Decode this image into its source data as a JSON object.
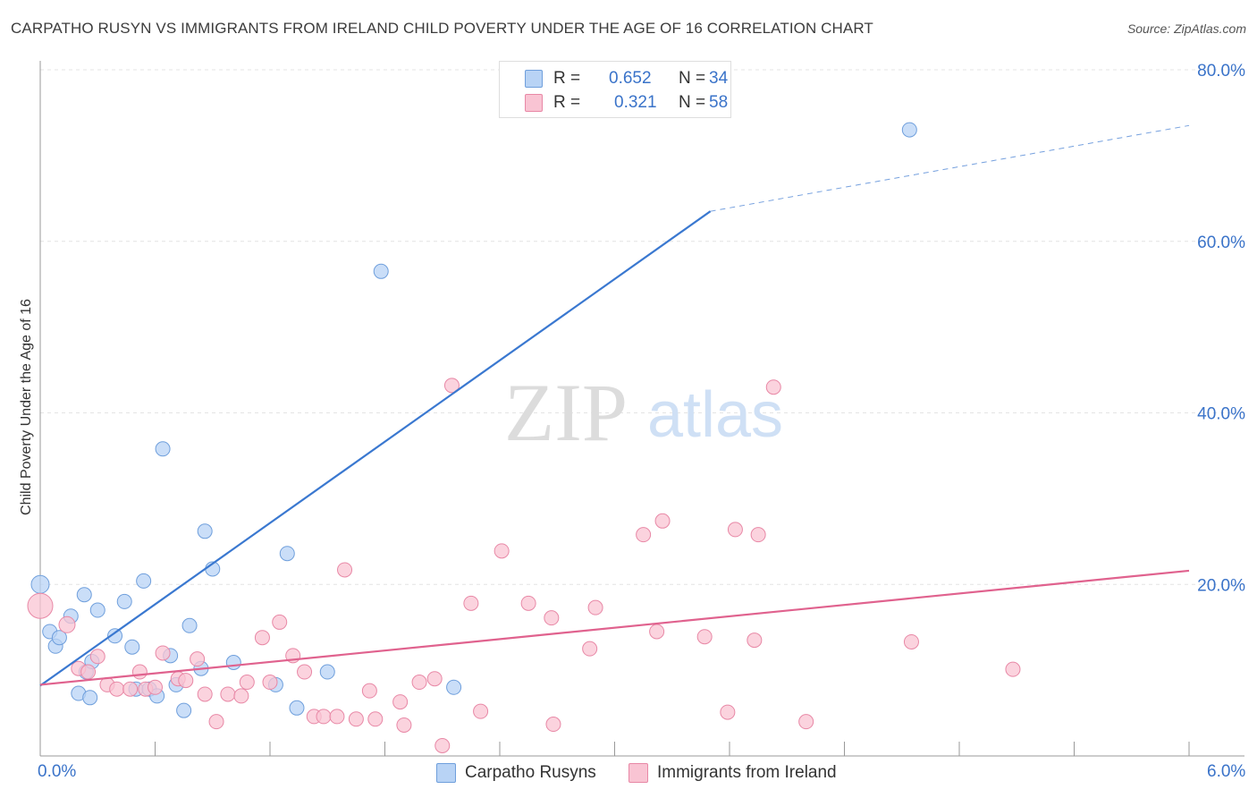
{
  "title": "CARPATHO RUSYN VS IMMIGRANTS FROM IRELAND CHILD POVERTY UNDER THE AGE OF 16 CORRELATION CHART",
  "source": "Source: ZipAtlas.com",
  "watermark": {
    "zip": "ZIP",
    "atlas": "atlas"
  },
  "legend": {
    "r_label": "R =",
    "n_label": "N =",
    "series": [
      {
        "name": "Carpatho Rusyns",
        "r": "0.652",
        "n": "34",
        "fill": "#b8d3f5",
        "stroke": "#6f9fdc"
      },
      {
        "name": "Immigrants from Ireland",
        "r": "0.321",
        "n": "58",
        "fill": "#f9c4d3",
        "stroke": "#e888a6"
      }
    ]
  },
  "chart_data": {
    "type": "scatter",
    "title": "CARPATHO RUSYN VS IMMIGRANTS FROM IRELAND CHILD POVERTY UNDER THE AGE OF 16 CORRELATION CHART",
    "xlabel": "",
    "ylabel": "Child Poverty Under the Age of 16",
    "xlim": [
      0,
      6
    ],
    "ylim": [
      0,
      80
    ],
    "x_tick_labels": [
      "0.0%",
      "6.0%"
    ],
    "y_ticks": [
      20,
      40,
      60,
      80
    ],
    "y_tick_labels": [
      "20.0%",
      "40.0%",
      "60.0%",
      "80.0%"
    ],
    "grid": true,
    "series": [
      {
        "name": "Carpatho Rusyns",
        "color": "#3a78d0",
        "fill": "#b8d3f5",
        "trend": {
          "x0": 0.0,
          "y0": 8.2,
          "x1": 3.5,
          "y1": 63.5,
          "dash_to_x": 6.0,
          "dash_to_y": 73.5
        },
        "points": [
          [
            0.0,
            20.0,
            10
          ],
          [
            0.05,
            14.5,
            8
          ],
          [
            0.08,
            12.8,
            8
          ],
          [
            0.1,
            13.8,
            8
          ],
          [
            0.16,
            16.3,
            8
          ],
          [
            0.2,
            7.3,
            8
          ],
          [
            0.23,
            18.8,
            8
          ],
          [
            0.24,
            9.8,
            8
          ],
          [
            0.26,
            6.8,
            8
          ],
          [
            0.27,
            11.0,
            8
          ],
          [
            0.3,
            17.0,
            8
          ],
          [
            0.39,
            14.0,
            8
          ],
          [
            0.44,
            18.0,
            8
          ],
          [
            0.48,
            12.7,
            8
          ],
          [
            0.5,
            7.8,
            8
          ],
          [
            0.54,
            20.4,
            8
          ],
          [
            0.57,
            7.8,
            8
          ],
          [
            0.61,
            7.0,
            8
          ],
          [
            0.64,
            35.8,
            8
          ],
          [
            0.68,
            11.7,
            8
          ],
          [
            0.71,
            8.3,
            8
          ],
          [
            0.75,
            5.3,
            8
          ],
          [
            0.78,
            15.2,
            8
          ],
          [
            0.84,
            10.2,
            8
          ],
          [
            0.86,
            26.2,
            8
          ],
          [
            0.9,
            21.8,
            8
          ],
          [
            1.01,
            10.9,
            8
          ],
          [
            1.23,
            8.3,
            8
          ],
          [
            1.29,
            23.6,
            8
          ],
          [
            1.34,
            5.6,
            8
          ],
          [
            1.5,
            9.8,
            8
          ],
          [
            1.78,
            56.5,
            8
          ],
          [
            2.16,
            8.0,
            8
          ],
          [
            4.54,
            73.0,
            8
          ]
        ]
      },
      {
        "name": "Immigrants from Ireland",
        "color": "#e0628e",
        "fill": "#f9c4d3",
        "trend": {
          "x0": 0.0,
          "y0": 8.3,
          "x1": 6.0,
          "y1": 21.6
        },
        "points": [
          [
            0.0,
            17.5,
            14
          ],
          [
            0.14,
            15.3,
            9
          ],
          [
            0.2,
            10.2,
            8
          ],
          [
            0.25,
            9.8,
            8
          ],
          [
            0.3,
            11.6,
            8
          ],
          [
            0.35,
            8.3,
            8
          ],
          [
            0.4,
            7.8,
            8
          ],
          [
            0.47,
            7.8,
            8
          ],
          [
            0.52,
            9.8,
            8
          ],
          [
            0.55,
            7.8,
            8
          ],
          [
            0.6,
            8.0,
            8
          ],
          [
            0.64,
            12.0,
            8
          ],
          [
            0.72,
            9.0,
            8
          ],
          [
            0.76,
            8.8,
            8
          ],
          [
            0.82,
            11.3,
            8
          ],
          [
            0.86,
            7.2,
            8
          ],
          [
            0.92,
            4.0,
            8
          ],
          [
            0.98,
            7.2,
            8
          ],
          [
            1.05,
            7.0,
            8
          ],
          [
            1.08,
            8.6,
            8
          ],
          [
            1.16,
            13.8,
            8
          ],
          [
            1.2,
            8.6,
            8
          ],
          [
            1.25,
            15.6,
            8
          ],
          [
            1.32,
            11.7,
            8
          ],
          [
            1.38,
            9.8,
            8
          ],
          [
            1.43,
            4.6,
            8
          ],
          [
            1.48,
            4.6,
            8
          ],
          [
            1.55,
            4.6,
            8
          ],
          [
            1.59,
            21.7,
            8
          ],
          [
            1.65,
            4.3,
            8
          ],
          [
            1.72,
            7.6,
            8
          ],
          [
            1.75,
            4.3,
            8
          ],
          [
            1.88,
            6.3,
            8
          ],
          [
            1.9,
            3.6,
            8
          ],
          [
            1.98,
            8.6,
            8
          ],
          [
            2.06,
            9.0,
            8
          ],
          [
            2.1,
            1.2,
            8
          ],
          [
            2.15,
            43.2,
            8
          ],
          [
            2.25,
            17.8,
            8
          ],
          [
            2.3,
            5.2,
            8
          ],
          [
            2.41,
            23.9,
            8
          ],
          [
            2.55,
            17.8,
            8
          ],
          [
            2.67,
            16.1,
            8
          ],
          [
            2.68,
            3.7,
            8
          ],
          [
            2.87,
            12.5,
            8
          ],
          [
            2.9,
            17.3,
            8
          ],
          [
            3.15,
            25.8,
            8
          ],
          [
            3.22,
            14.5,
            8
          ],
          [
            3.25,
            27.4,
            8
          ],
          [
            3.47,
            13.9,
            8
          ],
          [
            3.59,
            5.1,
            8
          ],
          [
            3.63,
            26.4,
            8
          ],
          [
            3.73,
            13.5,
            8
          ],
          [
            3.75,
            25.8,
            8
          ],
          [
            3.83,
            43.0,
            8
          ],
          [
            4.0,
            4.0,
            8
          ],
          [
            4.55,
            13.3,
            8
          ],
          [
            5.08,
            10.1,
            8
          ]
        ]
      }
    ]
  }
}
